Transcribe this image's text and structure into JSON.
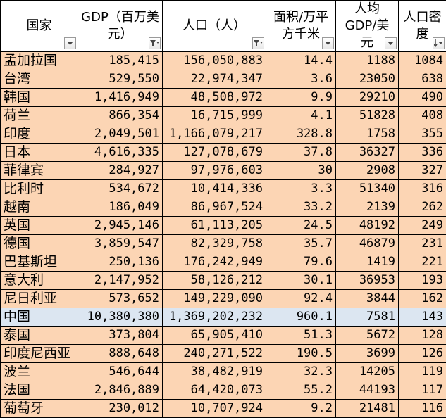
{
  "headers": [
    {
      "label": "国家",
      "filter_icon": "dropdown-arrow-icon"
    },
    {
      "label": "GDP（百万美元）",
      "filter_icon": "filter-sort-icon"
    },
    {
      "label": "人口（人）",
      "filter_icon": "filter-sort-icon"
    },
    {
      "label": "面积/万平方千米",
      "filter_icon": "dropdown-arrow-icon"
    },
    {
      "label": "人均GDP/美元",
      "filter_icon": "dropdown-arrow-icon"
    },
    {
      "label": "人口密度",
      "filter_icon": "sort-descending-icon"
    }
  ],
  "rows": [
    [
      "孟加拉国",
      "185,415",
      "156,050,883",
      "14.4",
      "1188",
      "1084"
    ],
    [
      "台湾",
      "529,550",
      "22,974,347",
      "3.6",
      "23050",
      "638"
    ],
    [
      "韩国",
      "1,416,949",
      "48,508,972",
      "9.9",
      "29210",
      "490"
    ],
    [
      "荷兰",
      "866,354",
      "16,715,999",
      "4.1",
      "51828",
      "408"
    ],
    [
      "印度",
      "2,049,501",
      "1,166,079,217",
      "328.8",
      "1758",
      "355"
    ],
    [
      "日本",
      "4,616,335",
      "127,078,679",
      "37.8",
      "36327",
      "336"
    ],
    [
      "菲律宾",
      "284,927",
      "97,976,603",
      "30",
      "2908",
      "327"
    ],
    [
      "比利时",
      "534,672",
      "10,414,336",
      "3.3",
      "51340",
      "316"
    ],
    [
      "越南",
      "186,049",
      "86,967,524",
      "33.2",
      "2139",
      "262"
    ],
    [
      "英国",
      "2,945,146",
      "61,113,205",
      "24.5",
      "48192",
      "249"
    ],
    [
      "德国",
      "3,859,547",
      "82,329,758",
      "35.7",
      "46879",
      "231"
    ],
    [
      "巴基斯坦",
      "250,136",
      "176,242,949",
      "79.6",
      "1419",
      "221"
    ],
    [
      "意大利",
      "2,147,952",
      "58,126,212",
      "30.1",
      "36953",
      "193"
    ],
    [
      "尼日利亚",
      "573,652",
      "149,229,090",
      "92.4",
      "3844",
      "162"
    ],
    [
      "中国",
      "10,380,380",
      "1,369,202,232",
      "960.1",
      "7581",
      "143"
    ],
    [
      "泰国",
      "373,804",
      "65,905,410",
      "51.3",
      "5672",
      "128"
    ],
    [
      "印度尼西亚",
      "888,648",
      "240,271,522",
      "190.5",
      "3699",
      "126"
    ],
    [
      "波兰",
      "546,644",
      "38,482,919",
      "32.3",
      "14205",
      "119"
    ],
    [
      "法国",
      "2,846,889",
      "64,420,073",
      "55.2",
      "44193",
      "117"
    ],
    [
      "葡萄牙",
      "230,012",
      "10,707,924",
      "9.2",
      "21481",
      "116"
    ]
  ],
  "highlighted_row": 14,
  "colors": {
    "row_fill": "#fcd5b4",
    "highlight_fill": "#dce6f1",
    "grid": "#000000"
  }
}
